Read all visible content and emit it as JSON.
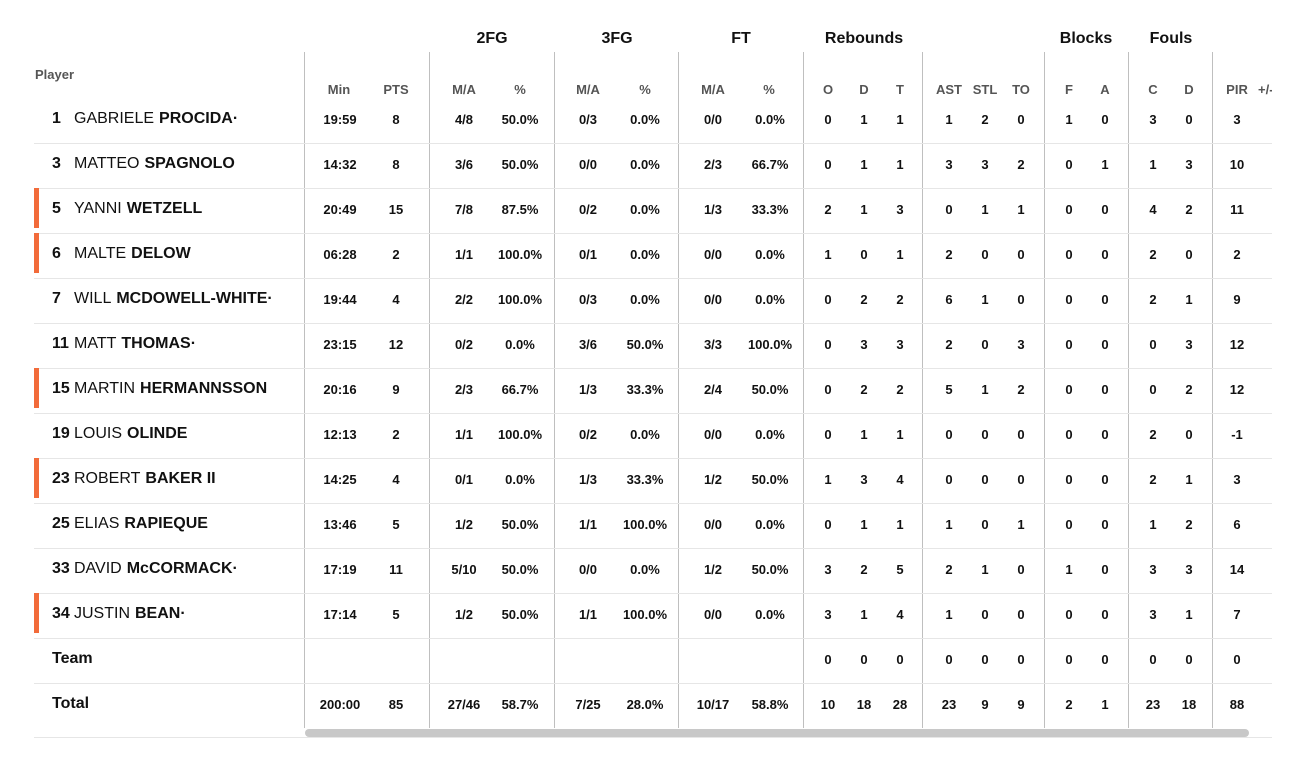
{
  "header": {
    "groups": {
      "fg2": "2FG",
      "fg3": "3FG",
      "ft": "FT",
      "rebounds": "Rebounds",
      "blocks": "Blocks",
      "fouls": "Fouls"
    },
    "player": "Player",
    "sub": {
      "min": "Min",
      "pts": "PTS",
      "fg2_ma": "M/A",
      "fg2_pct": "%",
      "fg3_ma": "M/A",
      "fg3_pct": "%",
      "ft_ma": "M/A",
      "ft_pct": "%",
      "o": "O",
      "d": "D",
      "t": "T",
      "ast": "AST",
      "stl": "STL",
      "to": "TO",
      "f": "F",
      "a": "A",
      "c": "C",
      "fd": "D",
      "pir": "PIR",
      "pm": "+/-"
    }
  },
  "accent_color": "#f26b3a",
  "players": [
    {
      "num": "1",
      "first": "GABRIELE",
      "last": "PROCIDA·",
      "starter": false,
      "min": "19:59",
      "pts": "8",
      "fg2": "4/8",
      "fg2p": "50.0%",
      "fg3": "0/3",
      "fg3p": "0.0%",
      "ft": "0/0",
      "ftp": "0.0%",
      "o": "0",
      "d": "1",
      "t": "1",
      "ast": "1",
      "stl": "2",
      "to": "0",
      "bf": "1",
      "ba": "0",
      "fc": "3",
      "fd": "0",
      "pir": "3"
    },
    {
      "num": "3",
      "first": "MATTEO",
      "last": "SPAGNOLO",
      "starter": false,
      "min": "14:32",
      "pts": "8",
      "fg2": "3/6",
      "fg2p": "50.0%",
      "fg3": "0/0",
      "fg3p": "0.0%",
      "ft": "2/3",
      "ftp": "66.7%",
      "o": "0",
      "d": "1",
      "t": "1",
      "ast": "3",
      "stl": "3",
      "to": "2",
      "bf": "0",
      "ba": "1",
      "fc": "1",
      "fd": "3",
      "pir": "10"
    },
    {
      "num": "5",
      "first": "YANNI",
      "last": "WETZELL",
      "starter": true,
      "min": "20:49",
      "pts": "15",
      "fg2": "7/8",
      "fg2p": "87.5%",
      "fg3": "0/2",
      "fg3p": "0.0%",
      "ft": "1/3",
      "ftp": "33.3%",
      "o": "2",
      "d": "1",
      "t": "3",
      "ast": "0",
      "stl": "1",
      "to": "1",
      "bf": "0",
      "ba": "0",
      "fc": "4",
      "fd": "2",
      "pir": "11"
    },
    {
      "num": "6",
      "first": "MALTE",
      "last": "DELOW",
      "starter": true,
      "min": "06:28",
      "pts": "2",
      "fg2": "1/1",
      "fg2p": "100.0%",
      "fg3": "0/1",
      "fg3p": "0.0%",
      "ft": "0/0",
      "ftp": "0.0%",
      "o": "1",
      "d": "0",
      "t": "1",
      "ast": "2",
      "stl": "0",
      "to": "0",
      "bf": "0",
      "ba": "0",
      "fc": "2",
      "fd": "0",
      "pir": "2"
    },
    {
      "num": "7",
      "first": "WILL",
      "last": "MCDOWELL-WHITE·",
      "starter": false,
      "min": "19:44",
      "pts": "4",
      "fg2": "2/2",
      "fg2p": "100.0%",
      "fg3": "0/3",
      "fg3p": "0.0%",
      "ft": "0/0",
      "ftp": "0.0%",
      "o": "0",
      "d": "2",
      "t": "2",
      "ast": "6",
      "stl": "1",
      "to": "0",
      "bf": "0",
      "ba": "0",
      "fc": "2",
      "fd": "1",
      "pir": "9"
    },
    {
      "num": "11",
      "first": "MATT",
      "last": "THOMAS·",
      "starter": false,
      "min": "23:15",
      "pts": "12",
      "fg2": "0/2",
      "fg2p": "0.0%",
      "fg3": "3/6",
      "fg3p": "50.0%",
      "ft": "3/3",
      "ftp": "100.0%",
      "o": "0",
      "d": "3",
      "t": "3",
      "ast": "2",
      "stl": "0",
      "to": "3",
      "bf": "0",
      "ba": "0",
      "fc": "0",
      "fd": "3",
      "pir": "12"
    },
    {
      "num": "15",
      "first": "MARTIN",
      "last": "HERMANNSSON",
      "starter": true,
      "min": "20:16",
      "pts": "9",
      "fg2": "2/3",
      "fg2p": "66.7%",
      "fg3": "1/3",
      "fg3p": "33.3%",
      "ft": "2/4",
      "ftp": "50.0%",
      "o": "0",
      "d": "2",
      "t": "2",
      "ast": "5",
      "stl": "1",
      "to": "2",
      "bf": "0",
      "ba": "0",
      "fc": "0",
      "fd": "2",
      "pir": "12"
    },
    {
      "num": "19",
      "first": "LOUIS",
      "last": "OLINDE",
      "starter": false,
      "min": "12:13",
      "pts": "2",
      "fg2": "1/1",
      "fg2p": "100.0%",
      "fg3": "0/2",
      "fg3p": "0.0%",
      "ft": "0/0",
      "ftp": "0.0%",
      "o": "0",
      "d": "1",
      "t": "1",
      "ast": "0",
      "stl": "0",
      "to": "0",
      "bf": "0",
      "ba": "0",
      "fc": "2",
      "fd": "0",
      "pir": "-1"
    },
    {
      "num": "23",
      "first": "ROBERT",
      "last": "BAKER II",
      "starter": true,
      "min": "14:25",
      "pts": "4",
      "fg2": "0/1",
      "fg2p": "0.0%",
      "fg3": "1/3",
      "fg3p": "33.3%",
      "ft": "1/2",
      "ftp": "50.0%",
      "o": "1",
      "d": "3",
      "t": "4",
      "ast": "0",
      "stl": "0",
      "to": "0",
      "bf": "0",
      "ba": "0",
      "fc": "2",
      "fd": "1",
      "pir": "3"
    },
    {
      "num": "25",
      "first": "ELIAS",
      "last": "RAPIEQUE",
      "starter": false,
      "min": "13:46",
      "pts": "5",
      "fg2": "1/2",
      "fg2p": "50.0%",
      "fg3": "1/1",
      "fg3p": "100.0%",
      "ft": "0/0",
      "ftp": "0.0%",
      "o": "0",
      "d": "1",
      "t": "1",
      "ast": "1",
      "stl": "0",
      "to": "1",
      "bf": "0",
      "ba": "0",
      "fc": "1",
      "fd": "2",
      "pir": "6"
    },
    {
      "num": "33",
      "first": "DAVID",
      "last": "McCORMACK·",
      "starter": false,
      "min": "17:19",
      "pts": "11",
      "fg2": "5/10",
      "fg2p": "50.0%",
      "fg3": "0/0",
      "fg3p": "0.0%",
      "ft": "1/2",
      "ftp": "50.0%",
      "o": "3",
      "d": "2",
      "t": "5",
      "ast": "2",
      "stl": "1",
      "to": "0",
      "bf": "1",
      "ba": "0",
      "fc": "3",
      "fd": "3",
      "pir": "14"
    },
    {
      "num": "34",
      "first": "JUSTIN",
      "last": "BEAN·",
      "starter": true,
      "min": "17:14",
      "pts": "5",
      "fg2": "1/2",
      "fg2p": "50.0%",
      "fg3": "1/1",
      "fg3p": "100.0%",
      "ft": "0/0",
      "ftp": "0.0%",
      "o": "3",
      "d": "1",
      "t": "4",
      "ast": "1",
      "stl": "0",
      "to": "0",
      "bf": "0",
      "ba": "0",
      "fc": "3",
      "fd": "1",
      "pir": "7"
    }
  ],
  "team": {
    "label": "Team",
    "o": "0",
    "d": "0",
    "t": "0",
    "ast": "0",
    "stl": "0",
    "to": "0",
    "bf": "0",
    "ba": "0",
    "fc": "0",
    "fd": "0",
    "pir": "0"
  },
  "total": {
    "label": "Total",
    "min": "200:00",
    "pts": "85",
    "fg2": "27/46",
    "fg2p": "58.7%",
    "fg3": "7/25",
    "fg3p": "28.0%",
    "ft": "10/17",
    "ftp": "58.8%",
    "o": "10",
    "d": "18",
    "t": "28",
    "ast": "23",
    "stl": "9",
    "to": "9",
    "bf": "2",
    "ba": "1",
    "fc": "23",
    "fd": "18",
    "pir": "88"
  }
}
